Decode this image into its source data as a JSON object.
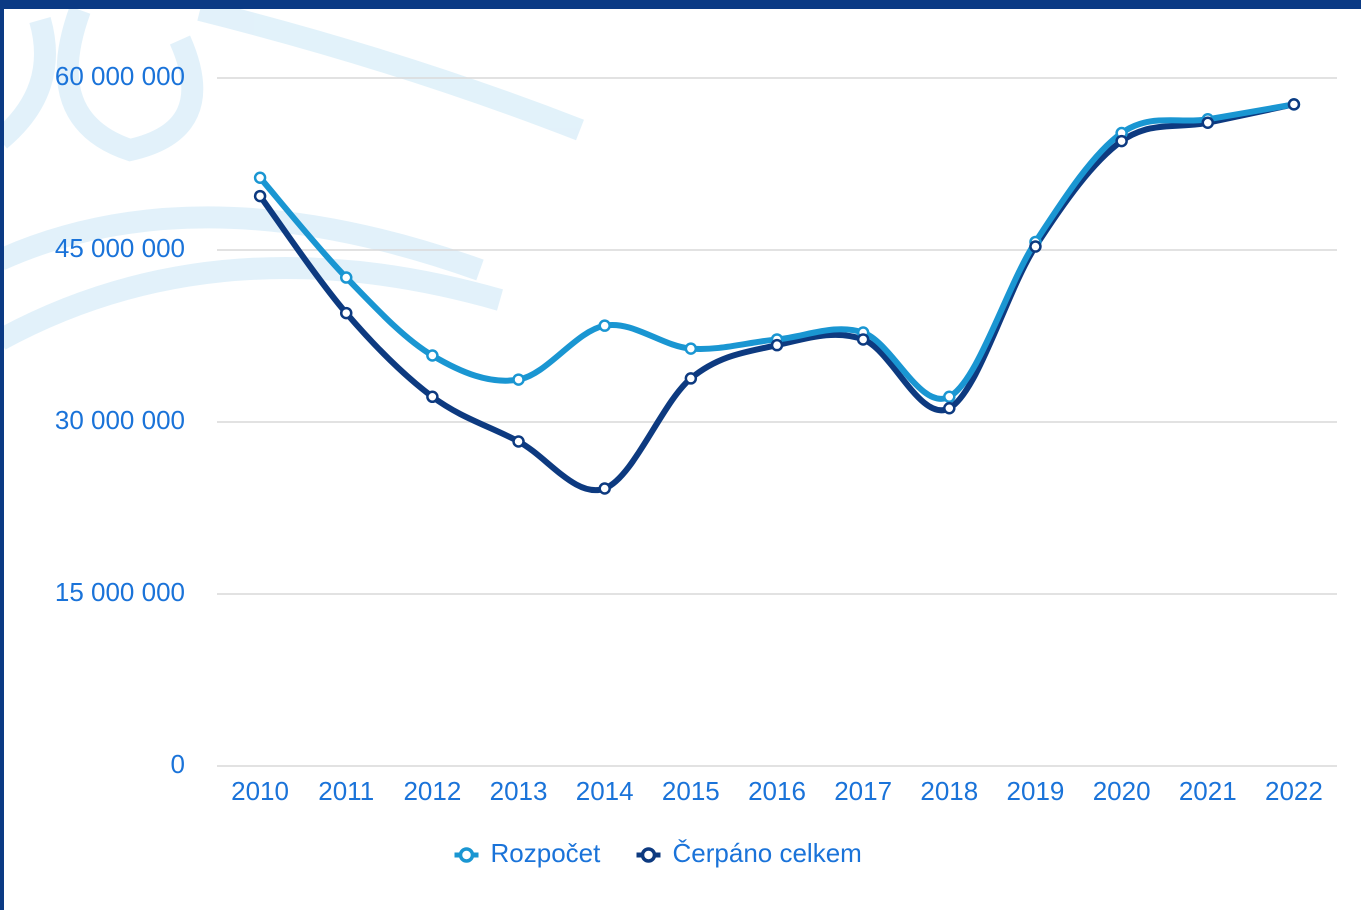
{
  "chart_data": {
    "type": "line",
    "categories": [
      "2010",
      "2011",
      "2012",
      "2013",
      "2014",
      "2015",
      "2016",
      "2017",
      "2018",
      "2019",
      "2020",
      "2021",
      "2022"
    ],
    "series": [
      {
        "name": "Rozpočet",
        "color": "#1a96d2",
        "values": [
          51300000,
          42600000,
          35800000,
          33700000,
          38400000,
          36400000,
          37200000,
          37800000,
          32200000,
          45700000,
          55200000,
          56400000,
          57700000
        ]
      },
      {
        "name": "Čerpáno celkem",
        "color": "#0d3a80",
        "values": [
          49700000,
          39500000,
          32200000,
          28300000,
          24200000,
          33800000,
          36700000,
          37200000,
          31200000,
          45300000,
          54500000,
          56100000,
          57700000
        ]
      }
    ],
    "ylim": [
      0,
      60000000
    ],
    "yticks": [
      0,
      {
        "value": 15000000,
        "label": "15 000 000"
      },
      {
        "value": 30000000,
        "label": "30 000 000"
      },
      {
        "value": 45000000,
        "label": "45 000 000"
      },
      {
        "value": 60000000,
        "label": "60 000 000"
      }
    ],
    "grid": true,
    "legend": "bottom"
  }
}
